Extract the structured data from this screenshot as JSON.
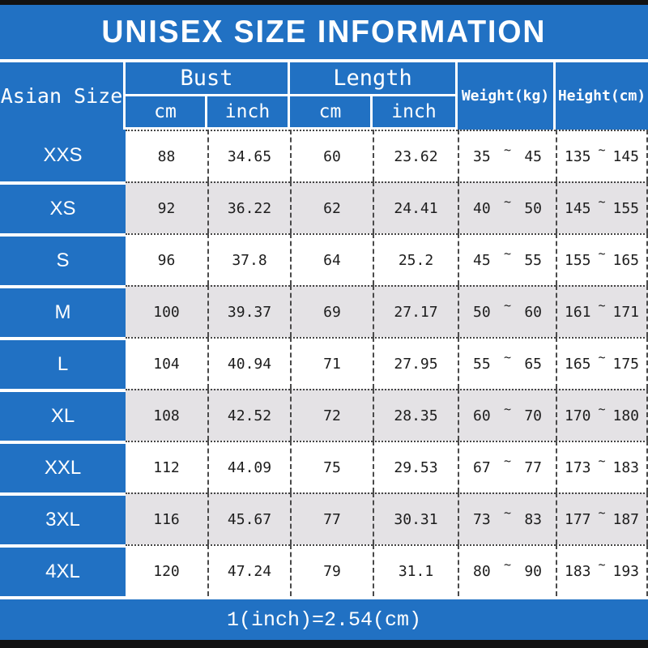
{
  "colors": {
    "accent_blue": "#2171C3",
    "row_alt_gray": "#E4E2E5",
    "frame_bar": "#121212",
    "grid_line": "#4a4a4a"
  },
  "chart_data": {
    "type": "table",
    "title": "UNISEX SIZE INFORMATION",
    "header": {
      "size_col": "Asian Size",
      "bust_group": "Bust",
      "length_group": "Length",
      "unit_cm": "cm",
      "unit_inch": "inch",
      "weight_col": "Weight(kg)",
      "height_col": "Height(cm)"
    },
    "range_separator": "~",
    "rows": [
      {
        "size": "XXS",
        "bust_cm": "88",
        "bust_inch": "34.65",
        "length_cm": "60",
        "length_inch": "23.62",
        "weight_min": "35",
        "weight_max": "45",
        "height_min": "135",
        "height_max": "145"
      },
      {
        "size": "XS",
        "bust_cm": "92",
        "bust_inch": "36.22",
        "length_cm": "62",
        "length_inch": "24.41",
        "weight_min": "40",
        "weight_max": "50",
        "height_min": "145",
        "height_max": "155"
      },
      {
        "size": "S",
        "bust_cm": "96",
        "bust_inch": "37.8",
        "length_cm": "64",
        "length_inch": "25.2",
        "weight_min": "45",
        "weight_max": "55",
        "height_min": "155",
        "height_max": "165"
      },
      {
        "size": "M",
        "bust_cm": "100",
        "bust_inch": "39.37",
        "length_cm": "69",
        "length_inch": "27.17",
        "weight_min": "50",
        "weight_max": "60",
        "height_min": "161",
        "height_max": "171"
      },
      {
        "size": "L",
        "bust_cm": "104",
        "bust_inch": "40.94",
        "length_cm": "71",
        "length_inch": "27.95",
        "weight_min": "55",
        "weight_max": "65",
        "height_min": "165",
        "height_max": "175"
      },
      {
        "size": "XL",
        "bust_cm": "108",
        "bust_inch": "42.52",
        "length_cm": "72",
        "length_inch": "28.35",
        "weight_min": "60",
        "weight_max": "70",
        "height_min": "170",
        "height_max": "180"
      },
      {
        "size": "XXL",
        "bust_cm": "112",
        "bust_inch": "44.09",
        "length_cm": "75",
        "length_inch": "29.53",
        "weight_min": "67",
        "weight_max": "77",
        "height_min": "173",
        "height_max": "183"
      },
      {
        "size": "3XL",
        "bust_cm": "116",
        "bust_inch": "45.67",
        "length_cm": "77",
        "length_inch": "30.31",
        "weight_min": "73",
        "weight_max": "83",
        "height_min": "177",
        "height_max": "187"
      },
      {
        "size": "4XL",
        "bust_cm": "120",
        "bust_inch": "47.24",
        "length_cm": "79",
        "length_inch": "31.1",
        "weight_min": "80",
        "weight_max": "90",
        "height_min": "183",
        "height_max": "193"
      }
    ],
    "footer_note": "1(inch)=2.54(cm)"
  }
}
